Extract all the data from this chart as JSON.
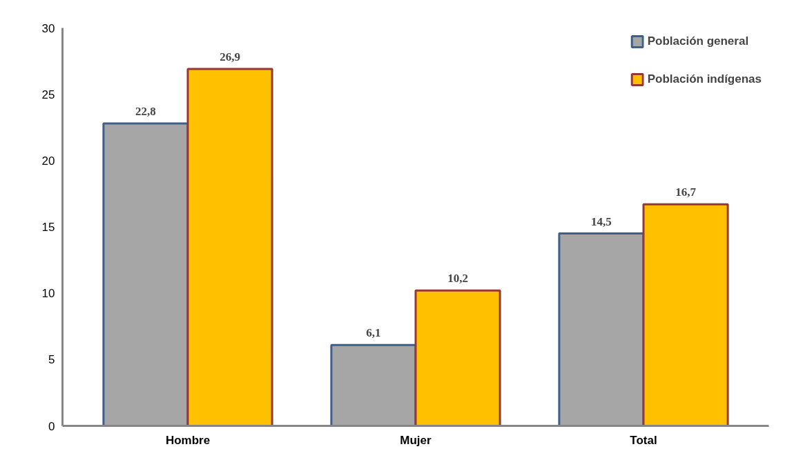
{
  "chart_data": {
    "type": "bar",
    "categories": [
      "Hombre",
      "Mujer",
      "Total"
    ],
    "series": [
      {
        "name": "Población general",
        "color": "#a6a6a6",
        "values": [
          22.8,
          6.1,
          14.5
        ],
        "value_labels": [
          "22,8",
          "6,1",
          "14,5"
        ]
      },
      {
        "name": "Población indígenas",
        "color": "#ffc000",
        "values": [
          26.9,
          10.2,
          16.7
        ],
        "value_labels": [
          "26,9",
          "10,2",
          "16,7"
        ]
      }
    ],
    "ylim": [
      0,
      30
    ],
    "yticks": [
      0,
      5,
      10,
      15,
      20,
      25,
      30
    ],
    "grid": false,
    "legend": "top right"
  }
}
